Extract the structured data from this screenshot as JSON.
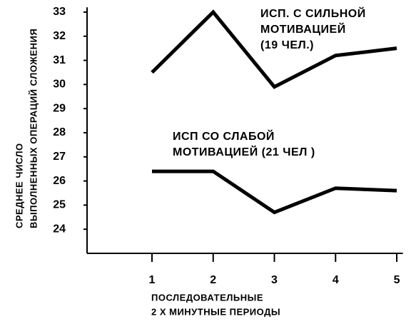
{
  "chart_data": {
    "type": "line",
    "y_label_lines": [
      "СРЕДНЕЕ ЧИСЛО",
      "ВЫПОЛНЕННЫХ ОПЕРАЦИЙ СЛОЖЕНИЯ"
    ],
    "x_label_lines": [
      "ПОСЛЕДОВАТЕЛЬНЫЕ",
      "2 Х МИНУТНЫЕ ПЕРИОДЫ"
    ],
    "x": [
      1,
      2,
      3,
      4,
      5
    ],
    "xlim": [
      0,
      5.1
    ],
    "xticks": [
      1,
      2,
      3,
      4,
      5
    ],
    "ylim": [
      23,
      33.2
    ],
    "yticks": [
      24,
      25,
      26,
      27,
      28,
      29,
      30,
      31,
      32,
      33
    ],
    "series": [
      {
        "name_lines": [
          "ИСП. С СИЛЬНОЙ",
          "МОТИВАЦИЕЙ",
          "(19 ЧЕЛ.)"
        ],
        "color": "#000000",
        "values": [
          30.5,
          33,
          29.9,
          31.2,
          31.5
        ]
      },
      {
        "name_lines": [
          "ИСП  СО СЛАБОЙ",
          "МОТИВАЦИЕЙ (21 ЧЕЛ )"
        ],
        "color": "#000000",
        "values": [
          26.4,
          26.4,
          24.7,
          25.7,
          25.6
        ]
      }
    ]
  }
}
